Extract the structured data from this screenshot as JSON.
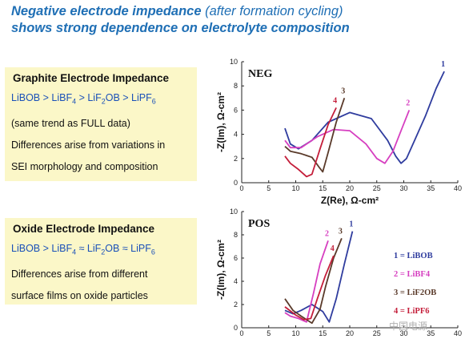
{
  "headline": {
    "line1_main": "Negative electrode impedance",
    "line1_paren": "(after formation cycling)",
    "line2": "shows strong dependence on electrolyte composition"
  },
  "graphite_box": {
    "title": "Graphite Electrode Impedance",
    "trend": "LiBOB > LiBF4 > LiF2OB > LiPF6",
    "lines": [
      "(same trend as FULL data)",
      "Differences arise from variations in",
      "SEI morphology and composition"
    ]
  },
  "oxide_box": {
    "title": "Oxide Electrode Impedance",
    "trend": "LiBOB > LiBF4 ≈ LiF2OB ≈ LiPF6",
    "lines": [
      "Differences arise from different",
      "surface films on oxide particles"
    ]
  },
  "watermark": "中国电源",
  "colors": {
    "libob": "#2f3c9e",
    "libf4": "#d63fc0",
    "lif2ob": "#5a3a2a",
    "lipf6": "#c41e3a"
  },
  "chart_data": [
    {
      "type": "line",
      "panel_label": "NEG",
      "xlabel": "Z(Re), Ω-cm²",
      "ylabel": "-Z(Im), Ω-cm²",
      "xlim": [
        0,
        40
      ],
      "ylim": [
        0,
        10
      ],
      "xticks": [
        0,
        5,
        10,
        15,
        20,
        25,
        30,
        35,
        40
      ],
      "yticks": [
        0,
        2,
        4,
        6,
        8,
        10
      ],
      "series": [
        {
          "name": "1",
          "color": "#2f3c9e",
          "x": [
            8,
            9,
            10.5,
            13,
            16,
            20,
            24,
            27,
            28.5,
            29.5,
            30.5,
            32,
            34,
            36,
            37.5
          ],
          "y": [
            4.5,
            3.2,
            2.8,
            3.5,
            5.0,
            5.8,
            5.3,
            3.5,
            2.2,
            1.6,
            2.0,
            3.5,
            5.5,
            7.8,
            9.2
          ]
        },
        {
          "name": "2",
          "color": "#d63fc0",
          "x": [
            8,
            9,
            11,
            14,
            17,
            20,
            23,
            25,
            26.5,
            28,
            29.5,
            31
          ],
          "y": [
            3.5,
            2.9,
            2.9,
            3.8,
            4.4,
            4.3,
            3.2,
            2.0,
            1.6,
            2.6,
            4.3,
            6.0
          ]
        },
        {
          "name": "3",
          "color": "#5a3a2a",
          "x": [
            8,
            9,
            11,
            13,
            14.3,
            15,
            16,
            17.5,
            19
          ],
          "y": [
            3.0,
            2.6,
            2.4,
            2.1,
            1.3,
            0.9,
            2.5,
            5.0,
            7.0
          ]
        },
        {
          "name": "4",
          "color": "#c41e3a",
          "x": [
            8,
            9,
            10.5,
            12,
            13,
            14.5,
            16,
            17.5
          ],
          "y": [
            2.2,
            1.6,
            1.1,
            0.5,
            0.7,
            2.8,
            4.8,
            6.2
          ]
        }
      ]
    },
    {
      "type": "line",
      "panel_label": "POS",
      "xlabel": "",
      "ylabel": "-Z(Im), Ω-cm²",
      "xlim": [
        0,
        40
      ],
      "ylim": [
        0,
        10
      ],
      "xticks": [
        0,
        5,
        10,
        15,
        20,
        25,
        30,
        35,
        40
      ],
      "yticks": [
        0,
        2,
        4,
        6,
        8,
        10
      ],
      "series": [
        {
          "name": "1 = LiBOB",
          "color": "#2f3c9e",
          "x": [
            8,
            9.5,
            11,
            13,
            15,
            16.2,
            17.5,
            19,
            20.5
          ],
          "y": [
            1.5,
            1.2,
            1.5,
            2.0,
            1.4,
            0.5,
            2.5,
            5.5,
            8.3
          ]
        },
        {
          "name": "2 = LiBF4",
          "color": "#d63fc0",
          "x": [
            8,
            9,
            10.5,
            12,
            13.3,
            14.5,
            16
          ],
          "y": [
            1.3,
            1.0,
            0.8,
            0.5,
            3.0,
            5.5,
            7.5
          ]
        },
        {
          "name": "3 = LiF2OB",
          "color": "#5a3a2a",
          "x": [
            8,
            9.5,
            11,
            13,
            14.5,
            15.5,
            17,
            18.5
          ],
          "y": [
            2.5,
            1.5,
            1.0,
            0.4,
            1.6,
            3.5,
            6.0,
            7.7
          ]
        },
        {
          "name": "4 = LiPF6",
          "color": "#c41e3a",
          "x": [
            8,
            10,
            11.5,
            12.8,
            14,
            15.5,
            17
          ],
          "y": [
            1.8,
            1.1,
            0.7,
            0.8,
            2.5,
            4.5,
            6.2
          ]
        }
      ]
    }
  ],
  "neg_curve_labels": [
    "1",
    "2",
    "3",
    "4"
  ],
  "pos_curve_labels": [
    "1",
    "2",
    "3",
    "4"
  ],
  "pos_legend": [
    "1 = LiBOB",
    "2 = LiBF4",
    "3 = LiF2OB",
    "4 = LiPF6"
  ]
}
